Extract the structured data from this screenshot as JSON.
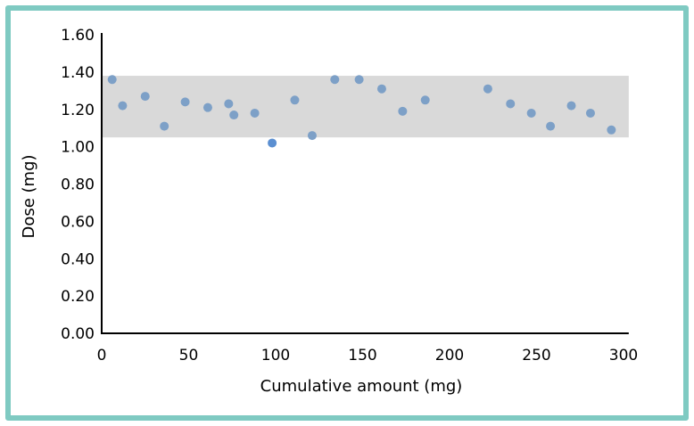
{
  "chart_data": {
    "type": "scatter",
    "xlabel": "Cumulative amount (mg)",
    "ylabel": "Dose (mg)",
    "xlim": [
      0,
      300
    ],
    "ylim": [
      0,
      1.6
    ],
    "xticks": [
      "0",
      "50",
      "100",
      "150",
      "200",
      "250",
      "300"
    ],
    "yticks": [
      "0.00",
      "0.20",
      "0.40",
      "0.60",
      "0.80",
      "1.00",
      "1.20",
      "1.40",
      "1.60"
    ],
    "grid": false,
    "band": {
      "y_low": 1.05,
      "y_high": 1.38,
      "x_low": 0,
      "x_high": 303,
      "color": "#d9d9d9"
    },
    "point_color": "#7da0c7",
    "highlight_color": "#5b8fd1",
    "points": [
      {
        "x": 6,
        "y": 1.36
      },
      {
        "x": 12,
        "y": 1.22
      },
      {
        "x": 25,
        "y": 1.27
      },
      {
        "x": 36,
        "y": 1.11
      },
      {
        "x": 48,
        "y": 1.24
      },
      {
        "x": 61,
        "y": 1.21
      },
      {
        "x": 73,
        "y": 1.23
      },
      {
        "x": 76,
        "y": 1.17
      },
      {
        "x": 88,
        "y": 1.18
      },
      {
        "x": 98,
        "y": 1.02,
        "highlight": true
      },
      {
        "x": 111,
        "y": 1.25
      },
      {
        "x": 121,
        "y": 1.06
      },
      {
        "x": 134,
        "y": 1.36
      },
      {
        "x": 148,
        "y": 1.36
      },
      {
        "x": 161,
        "y": 1.31
      },
      {
        "x": 173,
        "y": 1.19
      },
      {
        "x": 186,
        "y": 1.25
      },
      {
        "x": 222,
        "y": 1.31
      },
      {
        "x": 235,
        "y": 1.23
      },
      {
        "x": 247,
        "y": 1.18
      },
      {
        "x": 258,
        "y": 1.11
      },
      {
        "x": 270,
        "y": 1.22
      },
      {
        "x": 281,
        "y": 1.18
      },
      {
        "x": 293,
        "y": 1.09
      }
    ]
  }
}
